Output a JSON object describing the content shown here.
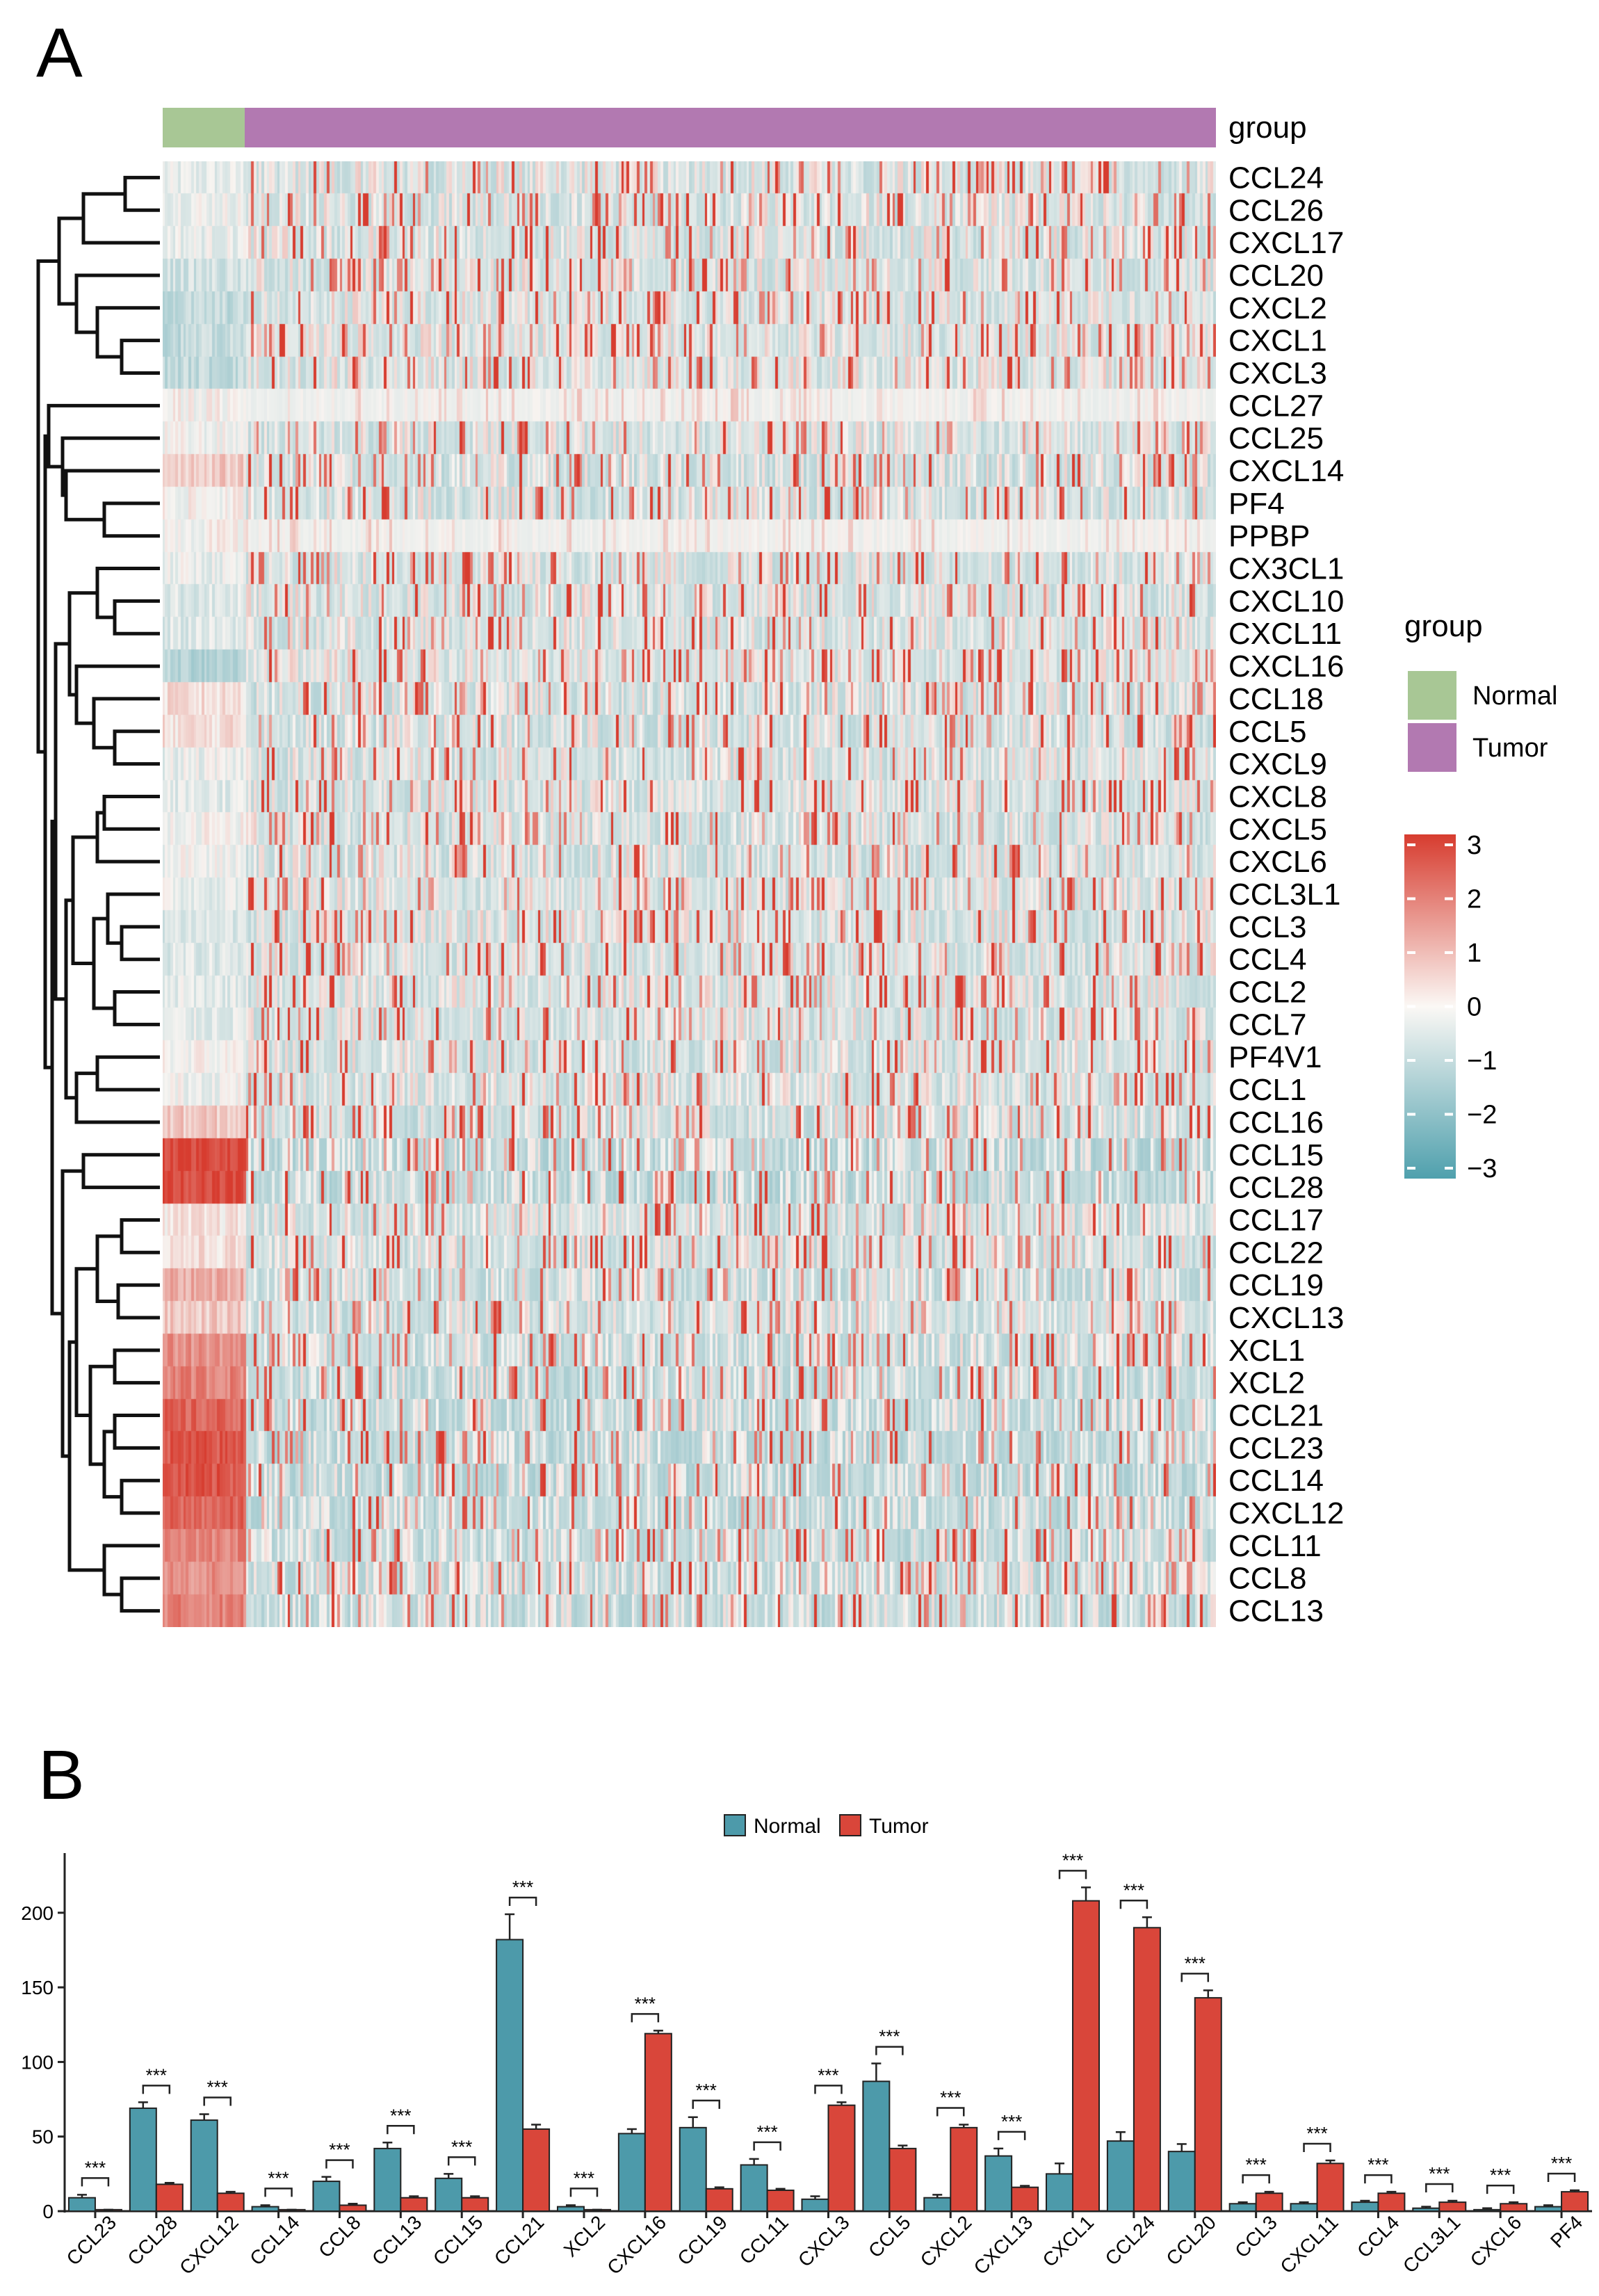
{
  "panels": {
    "a_label": "A",
    "b_label": "B"
  },
  "colors": {
    "normal_group": "#a8c795",
    "tumor_group": "#b279b1",
    "heat_high": "#d73c2f",
    "heat_mid": "#f7f4f1",
    "heat_low": "#4fa0ad",
    "bar_normal": "#4d9aaa",
    "bar_tumor": "#d9463a"
  },
  "chart_data": [
    {
      "type": "heatmap",
      "genes": [
        "CCL24",
        "CCL26",
        "CXCL17",
        "CCL20",
        "CXCL2",
        "CXCL1",
        "CXCL3",
        "CCL27",
        "CCL25",
        "CXCL14",
        "PF4",
        "PPBP",
        "CX3CL1",
        "CXCL10",
        "CXCL11",
        "CXCL16",
        "CCL18",
        "CCL5",
        "CXCL9",
        "CXCL8",
        "CXCL5",
        "CXCL6",
        "CCL3L1",
        "CCL3",
        "CCL4",
        "CCL2",
        "CCL7",
        "PF4V1",
        "CCL1",
        "CCL16",
        "CCL15",
        "CCL28",
        "CCL17",
        "CCL22",
        "CCL19",
        "CXCL13",
        "XCL1",
        "XCL2",
        "CCL21",
        "CCL23",
        "CCL14",
        "CXCL12",
        "CCL11",
        "CCL8",
        "CCL13"
      ],
      "group_annotation": {
        "title": "group",
        "groups": [
          "Normal",
          "Tumor"
        ],
        "normal_fraction": 0.078
      },
      "legend_group_title": "group",
      "legend_entries": [
        "Normal",
        "Tumor"
      ],
      "colorbar_ticks": [
        "3",
        "2",
        "1",
        "0",
        "−1",
        "−2",
        "−3"
      ],
      "colorbar_range": [
        -3,
        3
      ],
      "normal_mean_z": [
        -0.3,
        -0.1,
        -0.2,
        -0.6,
        -0.8,
        -0.8,
        -0.8,
        0.0,
        -0.1,
        0.6,
        0.0,
        0.0,
        -0.2,
        -0.4,
        -0.4,
        -1.0,
        0.3,
        0.3,
        -0.2,
        -0.3,
        0.0,
        -0.1,
        -0.2,
        -0.4,
        -0.4,
        -0.3,
        -0.3,
        0.0,
        -0.1,
        0.6,
        2.5,
        2.4,
        0.2,
        0.3,
        1.0,
        0.6,
        1.4,
        1.6,
        2.0,
        2.2,
        2.2,
        2.0,
        1.6,
        1.4,
        1.6
      ]
    },
    {
      "type": "bar",
      "title": "",
      "ylabel": "",
      "xlabel": "",
      "ylim": [
        0,
        240
      ],
      "yticks": [
        0,
        50,
        100,
        150,
        200
      ],
      "legend_position": "top-center",
      "significance_label": "***",
      "categories": [
        "CCL23",
        "CCL28",
        "CXCL12",
        "CCL14",
        "CCL8",
        "CCL13",
        "CCL15",
        "CCL21",
        "XCL2",
        "CXCL16",
        "CCL19",
        "CCL11",
        "CXCL3",
        "CCL5",
        "CXCL2",
        "CXCL13",
        "CXCL1",
        "CCL24",
        "CCL20",
        "CCL3",
        "CXCL11",
        "CCL4",
        "CCL3L1",
        "CXCL6",
        "PF4"
      ],
      "series": [
        {
          "name": "Normal",
          "values": [
            9,
            69,
            61,
            3,
            20,
            42,
            22,
            182,
            3,
            52,
            56,
            31,
            8,
            87,
            9,
            37,
            25,
            47,
            40,
            5,
            5,
            6,
            2,
            1,
            3
          ],
          "errors": [
            2,
            4,
            4,
            1,
            3,
            4,
            3,
            17,
            1,
            3,
            7,
            4,
            2,
            12,
            2,
            5,
            7,
            6,
            5,
            1,
            1,
            1,
            1,
            1,
            1
          ]
        },
        {
          "name": "Tumor",
          "values": [
            1,
            18,
            12,
            1,
            4,
            9,
            9,
            55,
            1,
            119,
            15,
            14,
            71,
            42,
            56,
            16,
            208,
            190,
            143,
            12,
            32,
            12,
            6,
            5,
            13
          ],
          "errors": [
            0,
            1,
            1,
            0,
            1,
            1,
            1,
            3,
            0,
            2,
            1,
            1,
            2,
            2,
            2,
            1,
            9,
            7,
            5,
            1,
            2,
            1,
            1,
            1,
            1
          ]
        }
      ]
    }
  ]
}
